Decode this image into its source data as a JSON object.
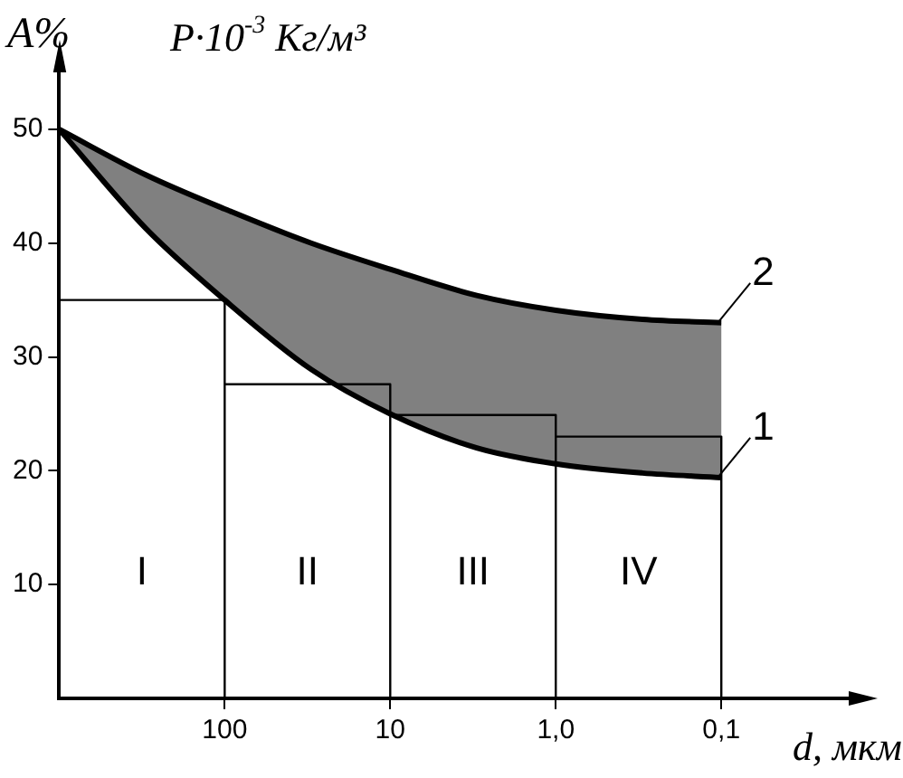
{
  "chart_data": {
    "type": "line",
    "xlabel": "d, мкм",
    "ylabel": "A%",
    "annotations": [
      "P·10$^{-3}$ Кг/м³",
      "I",
      "II",
      "III",
      "IV"
    ],
    "x": [
      1000,
      300,
      100,
      30,
      10,
      3,
      1,
      0.3,
      0.1
    ],
    "series": [
      {
        "type": "step",
        "color": "#000000",
        "x": [
          1000,
          100,
          100,
          10,
          10,
          1,
          1,
          0.1
        ],
        "values": [
          35,
          0,
          27.6,
          0,
          24.9,
          0,
          23,
          0
        ]
      },
      {
        "name": "1",
        "color": "#000000",
        "values": [
          50,
          41.3,
          35,
          28.9,
          25,
          22,
          20.6,
          19.8,
          19.4
        ]
      },
      {
        "name": "2",
        "color": "#000000",
        "values": [
          50,
          46,
          43,
          40,
          37.7,
          35.4,
          34.1,
          33.3,
          33
        ],
        "lower": [
          50,
          41.3,
          35,
          28.9,
          25,
          22,
          20.6,
          19.8,
          19.4
        ],
        "upper": [
          50,
          46,
          43,
          40,
          37.7,
          35.4,
          34.1,
          33.3,
          33
        ]
      }
    ],
    "log": "x",
    "xlim": [
      1000,
      0.017
    ],
    "xticks": [
      100,
      10,
      {
        "value": 1,
        "label": "1,0"
      },
      {
        "value": 0.1,
        "label": "0,1"
      }
    ],
    "ylim": [
      0,
      55
    ],
    "yticks": [
      10,
      20,
      30,
      40,
      50
    ],
    "legend": false,
    "grid": false
  }
}
